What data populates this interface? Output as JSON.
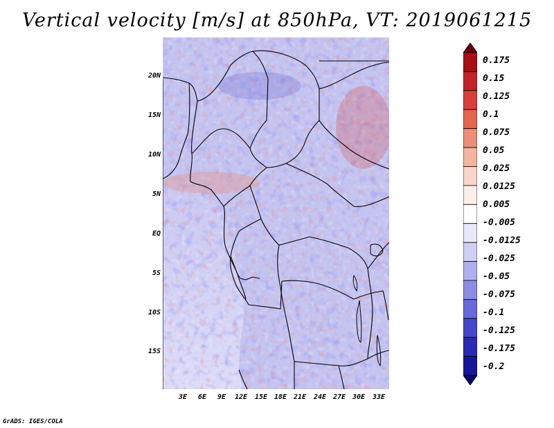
{
  "title": "Vertical velocity [m/s] at 850hPa, VT: 2019061215",
  "y_axis": {
    "labels": [
      "20N",
      "15N",
      "10N",
      "5N",
      "EQ",
      "5S",
      "10S",
      "15S"
    ],
    "degrees": [
      20,
      15,
      10,
      5,
      0,
      -5,
      -10,
      -15
    ],
    "range": [
      -20,
      24.5
    ]
  },
  "x_axis": {
    "labels": [
      "3E",
      "6E",
      "9E",
      "12E",
      "15E",
      "18E",
      "21E",
      "24E",
      "27E",
      "30E",
      "33E"
    ],
    "degrees": [
      3,
      6,
      9,
      12,
      15,
      18,
      21,
      24,
      27,
      30,
      33
    ],
    "range": [
      0,
      34.5
    ]
  },
  "colorbar": {
    "labels": [
      "0.175",
      "0.15",
      "0.125",
      "0.1",
      "0.075",
      "0.05",
      "0.025",
      "0.0125",
      "0.005",
      "-0.005",
      "-0.0125",
      "-0.025",
      "-0.05",
      "-0.075",
      "-0.1",
      "-0.125",
      "-0.175",
      "-0.2"
    ],
    "colors": [
      "#67000d",
      "#a50f15",
      "#c0232a",
      "#d7403a",
      "#e3664f",
      "#ec8e78",
      "#f4b4a2",
      "#fad4c8",
      "#fdeee8",
      "#ffffff",
      "#e8e8fb",
      "#cfcff5",
      "#b0b0ee",
      "#8d8de5",
      "#6969da",
      "#4646ca",
      "#2a2ab3",
      "#16169a",
      "#08086e"
    ]
  },
  "credit": "GrADS: IGES/COLA"
}
